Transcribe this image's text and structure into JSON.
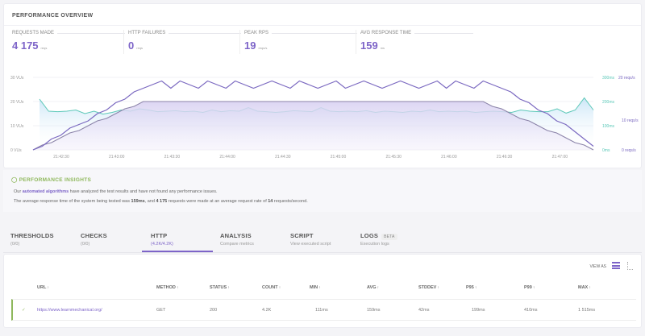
{
  "overview": {
    "title": "PERFORMANCE OVERVIEW",
    "stats": [
      {
        "label": "REQUESTS MADE",
        "value": "4 175",
        "unit": "reqs"
      },
      {
        "label": "HTTP FAILURES",
        "value": "0",
        "unit": "reqs"
      },
      {
        "label": "PEAK RPS",
        "value": "19",
        "unit": "reqs/s"
      },
      {
        "label": "AVG RESPONSE TIME",
        "value": "159",
        "unit": "ms"
      }
    ]
  },
  "chart_data": {
    "type": "line",
    "x_ticks": [
      "21:42:30",
      "21:43:00",
      "21:43:30",
      "21:44:00",
      "21:44:30",
      "21:45:00",
      "21:45:30",
      "21:46:00",
      "21:46:30",
      "21:47:00"
    ],
    "y_left_ticks": [
      "0 VUs",
      "10 VUs",
      "20 VUs",
      "30 VUs"
    ],
    "y_right_ms_ticks": [
      "0ms",
      "100ms",
      "200ms",
      "300ms"
    ],
    "y_right_reqs_ticks": [
      "0 reqs/s",
      "10 reqs/s",
      "20 reqs/s"
    ],
    "ylim_vus": [
      0,
      30
    ],
    "ylim_ms": [
      0,
      300
    ],
    "ylim_reqs": [
      0,
      20
    ],
    "grid": true,
    "colors": {
      "vus": "#8a82a8",
      "reqs": "#7a68c0",
      "ms": "#5cc8b8"
    },
    "series": [
      {
        "key": "vus",
        "values": [
          0,
          2,
          3,
          5,
          7,
          8,
          10,
          12,
          13,
          15,
          17,
          18,
          20,
          20,
          20,
          20,
          20,
          20,
          20,
          20,
          20,
          20,
          20,
          20,
          20,
          20,
          20,
          20,
          20,
          20,
          20,
          20,
          20,
          20,
          20,
          20,
          20,
          20,
          20,
          20,
          20,
          20,
          20,
          20,
          20,
          20,
          20,
          20,
          20,
          20,
          18,
          17,
          15,
          13,
          12,
          10,
          8,
          7,
          5,
          3,
          2,
          0
        ]
      },
      {
        "key": "reqs",
        "values": [
          0,
          1,
          3,
          4,
          6,
          7,
          8,
          10,
          11,
          13,
          14,
          16,
          17,
          18,
          19,
          17,
          19,
          18,
          17,
          19,
          18,
          17,
          19,
          18,
          17,
          18,
          19,
          18,
          17,
          19,
          18,
          17,
          18,
          19,
          17,
          18,
          19,
          18,
          17,
          18,
          19,
          18,
          17,
          18,
          19,
          17,
          19,
          18,
          17,
          19,
          18,
          17,
          16,
          14,
          13,
          11,
          10,
          8,
          7,
          5,
          3,
          1
        ]
      },
      {
        "key": "ms",
        "values": [
          210,
          160,
          158,
          160,
          165,
          150,
          160,
          148,
          155,
          165,
          160,
          170,
          165,
          158,
          160,
          162,
          158,
          160,
          155,
          165,
          158,
          162,
          160,
          175,
          160,
          158,
          155,
          158,
          162,
          160,
          158,
          175,
          160,
          158,
          160,
          158,
          162,
          155,
          160,
          158,
          155,
          160,
          158,
          165,
          158,
          160,
          158,
          160,
          155,
          158,
          160,
          158,
          155,
          165,
          160,
          158,
          158,
          170,
          152,
          165,
          215,
          165
        ]
      }
    ]
  },
  "insights": {
    "title": "PERFORMANCE INSIGHTS",
    "line1_pre": "Our ",
    "line1_link": "automated algorithms",
    "line1_post": " have analyzed the test results and have not found any performance issues.",
    "line2_a": "The average response time of the system being tested was ",
    "line2_b": "159ms",
    "line2_c": ", and ",
    "line2_d": "4 175",
    "line2_e": " requests were made at an average request rate of ",
    "line2_f": "14",
    "line2_g": " requests/second."
  },
  "tabs": [
    {
      "title": "THRESHOLDS",
      "sub": "(0/0)"
    },
    {
      "title": "CHECKS",
      "sub": "(0/0)"
    },
    {
      "title": "HTTP",
      "sub": "(4.2K/4.2K)"
    },
    {
      "title": "ANALYSIS",
      "sub": "Compare metrics"
    },
    {
      "title": "SCRIPT",
      "sub": "View executed script"
    },
    {
      "title": "LOGS",
      "sub": "Execution logs",
      "badge": "BETA"
    }
  ],
  "table": {
    "view_as": "VIEW AS",
    "headers": [
      "URL",
      "METHOD",
      "STATUS",
      "COUNT",
      "MIN",
      "AVG",
      "STDDEV",
      "P95",
      "P99",
      "MAX"
    ],
    "rows": [
      [
        "https://www.learnmechanical.org/",
        "GET",
        "200",
        "4.2K",
        "111ms",
        "159ms",
        "42ms",
        "199ms",
        "410ms",
        "1 515ms"
      ]
    ]
  }
}
